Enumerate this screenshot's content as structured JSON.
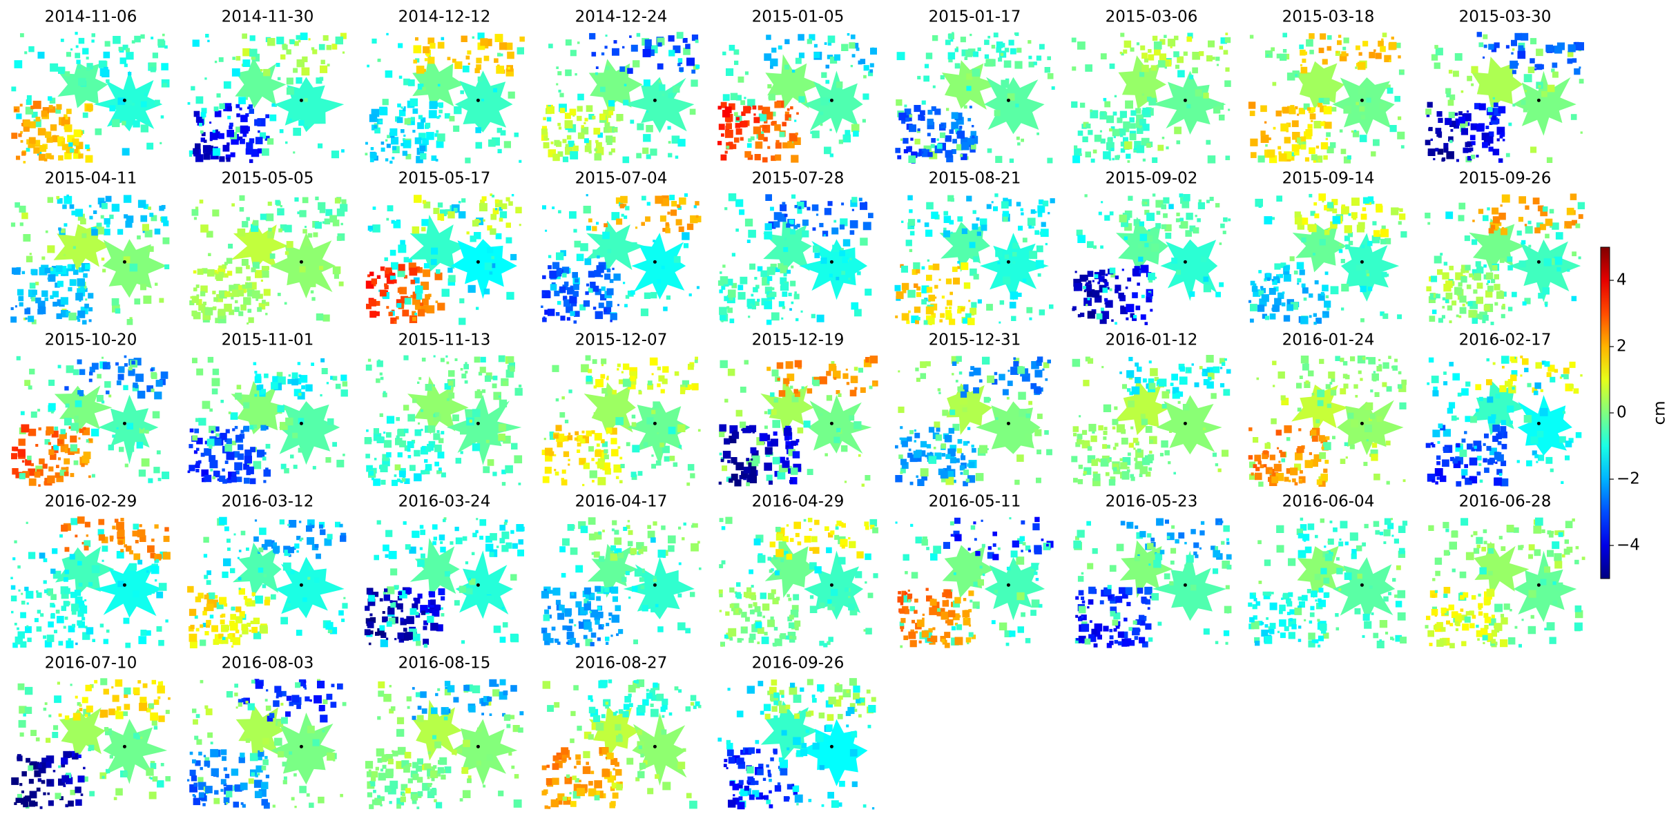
{
  "chart_data": {
    "type": "image-grid",
    "titles": [
      "2014-11-06",
      "2014-11-30",
      "2014-12-12",
      "2014-12-24",
      "2015-01-05",
      "2015-01-17",
      "2015-03-06",
      "2015-03-18",
      "2015-03-30",
      "2015-04-11",
      "2015-05-05",
      "2015-05-17",
      "2015-07-04",
      "2015-07-28",
      "2015-08-21",
      "2015-09-02",
      "2015-09-14",
      "2015-09-26",
      "2015-10-20",
      "2015-11-01",
      "2015-11-13",
      "2015-12-07",
      "2015-12-19",
      "2015-12-31",
      "2016-01-12",
      "2016-01-24",
      "2016-02-17",
      "2016-02-29",
      "2016-03-12",
      "2016-03-24",
      "2016-04-17",
      "2016-04-29",
      "2016-05-11",
      "2016-05-23",
      "2016-06-04",
      "2016-06-28",
      "2016-07-10",
      "2016-08-03",
      "2016-08-15",
      "2016-08-27",
      "2016-09-26"
    ],
    "colorbar": {
      "label": "cm",
      "lim": [
        -5,
        5
      ],
      "ticks": [
        {
          "value": -4,
          "label": "−4"
        },
        {
          "value": -2,
          "label": "−2"
        },
        0,
        2,
        4
      ],
      "colormap": "jet"
    }
  }
}
